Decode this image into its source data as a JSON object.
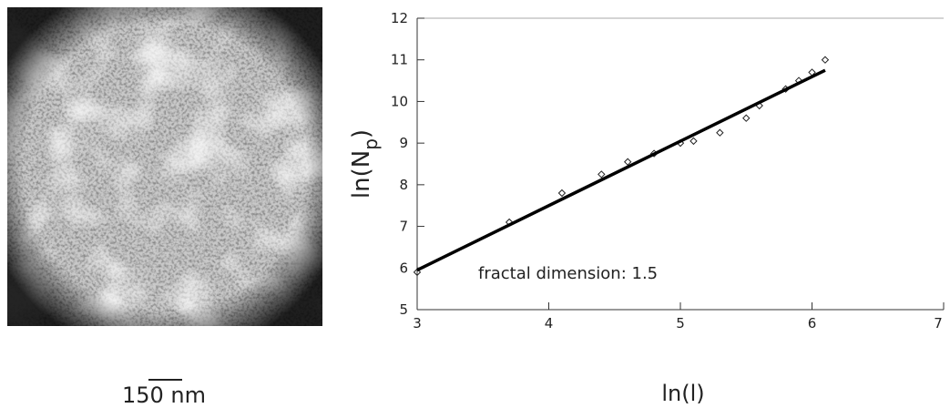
{
  "image": {
    "scale_bar": "150 nm"
  },
  "chart_data": {
    "type": "scatter",
    "xlabel": "ln(l)",
    "ylabel": "ln(N",
    "ylabel_sub": "p",
    "ylabel_end": ")",
    "annotation": "fractal dimension: 1.5",
    "xlim": [
      3,
      7
    ],
    "xticks": [
      3,
      4,
      5,
      6,
      7
    ],
    "ylim": [
      5,
      12
    ],
    "yticks": [
      5,
      6,
      7,
      8,
      9,
      10,
      11,
      12
    ],
    "series": [
      {
        "type": "scatter",
        "color": "#222222",
        "x": [
          3.0,
          3.7,
          4.1,
          4.4,
          4.6,
          4.8,
          5.0,
          5.1,
          5.3,
          5.5,
          5.6,
          5.8,
          5.9,
          6.0,
          6.1
        ],
        "values": [
          5.9,
          7.1,
          7.8,
          8.25,
          8.55,
          8.75,
          9.0,
          9.05,
          9.25,
          9.6,
          9.9,
          10.3,
          10.5,
          10.7,
          11.0
        ]
      },
      {
        "type": "line",
        "color": "#000000",
        "x": [
          3.0,
          6.1
        ],
        "values": [
          5.95,
          10.75
        ]
      }
    ]
  }
}
